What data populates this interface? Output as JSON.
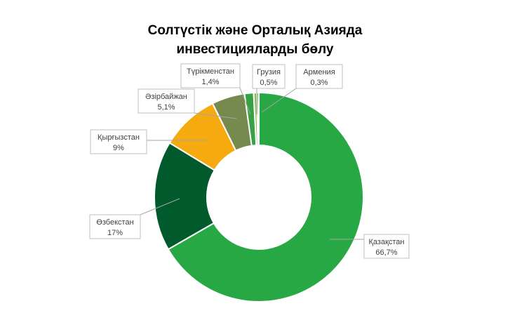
{
  "title_lines": [
    "Солтүстік және Орталық Азияда",
    "инвестицияларды бөлу"
  ],
  "chart_data": {
    "type": "pie",
    "variant": "donut",
    "title": "Солтүстік және Орталық Азияда инвестицияларды бөлу",
    "categories": [
      "Қазақстан",
      "Өзбекстан",
      "Қырғызстан",
      "Әзірбайжан",
      "Түрікменстан",
      "Грузия",
      "Армения"
    ],
    "values": [
      66.7,
      17,
      9,
      5.1,
      1.4,
      0.5,
      0.3
    ],
    "value_labels": [
      "66,7%",
      "17%",
      "9%",
      "5,1%",
      "1,4%",
      "0,5%",
      "0,3%"
    ],
    "colors": [
      "#27a844",
      "#005a2b",
      "#f5ab0f",
      "#76894f",
      "#36a145",
      "#9bbb59",
      "#4aa34a"
    ],
    "legend": "none",
    "data_labels": "callouts"
  }
}
